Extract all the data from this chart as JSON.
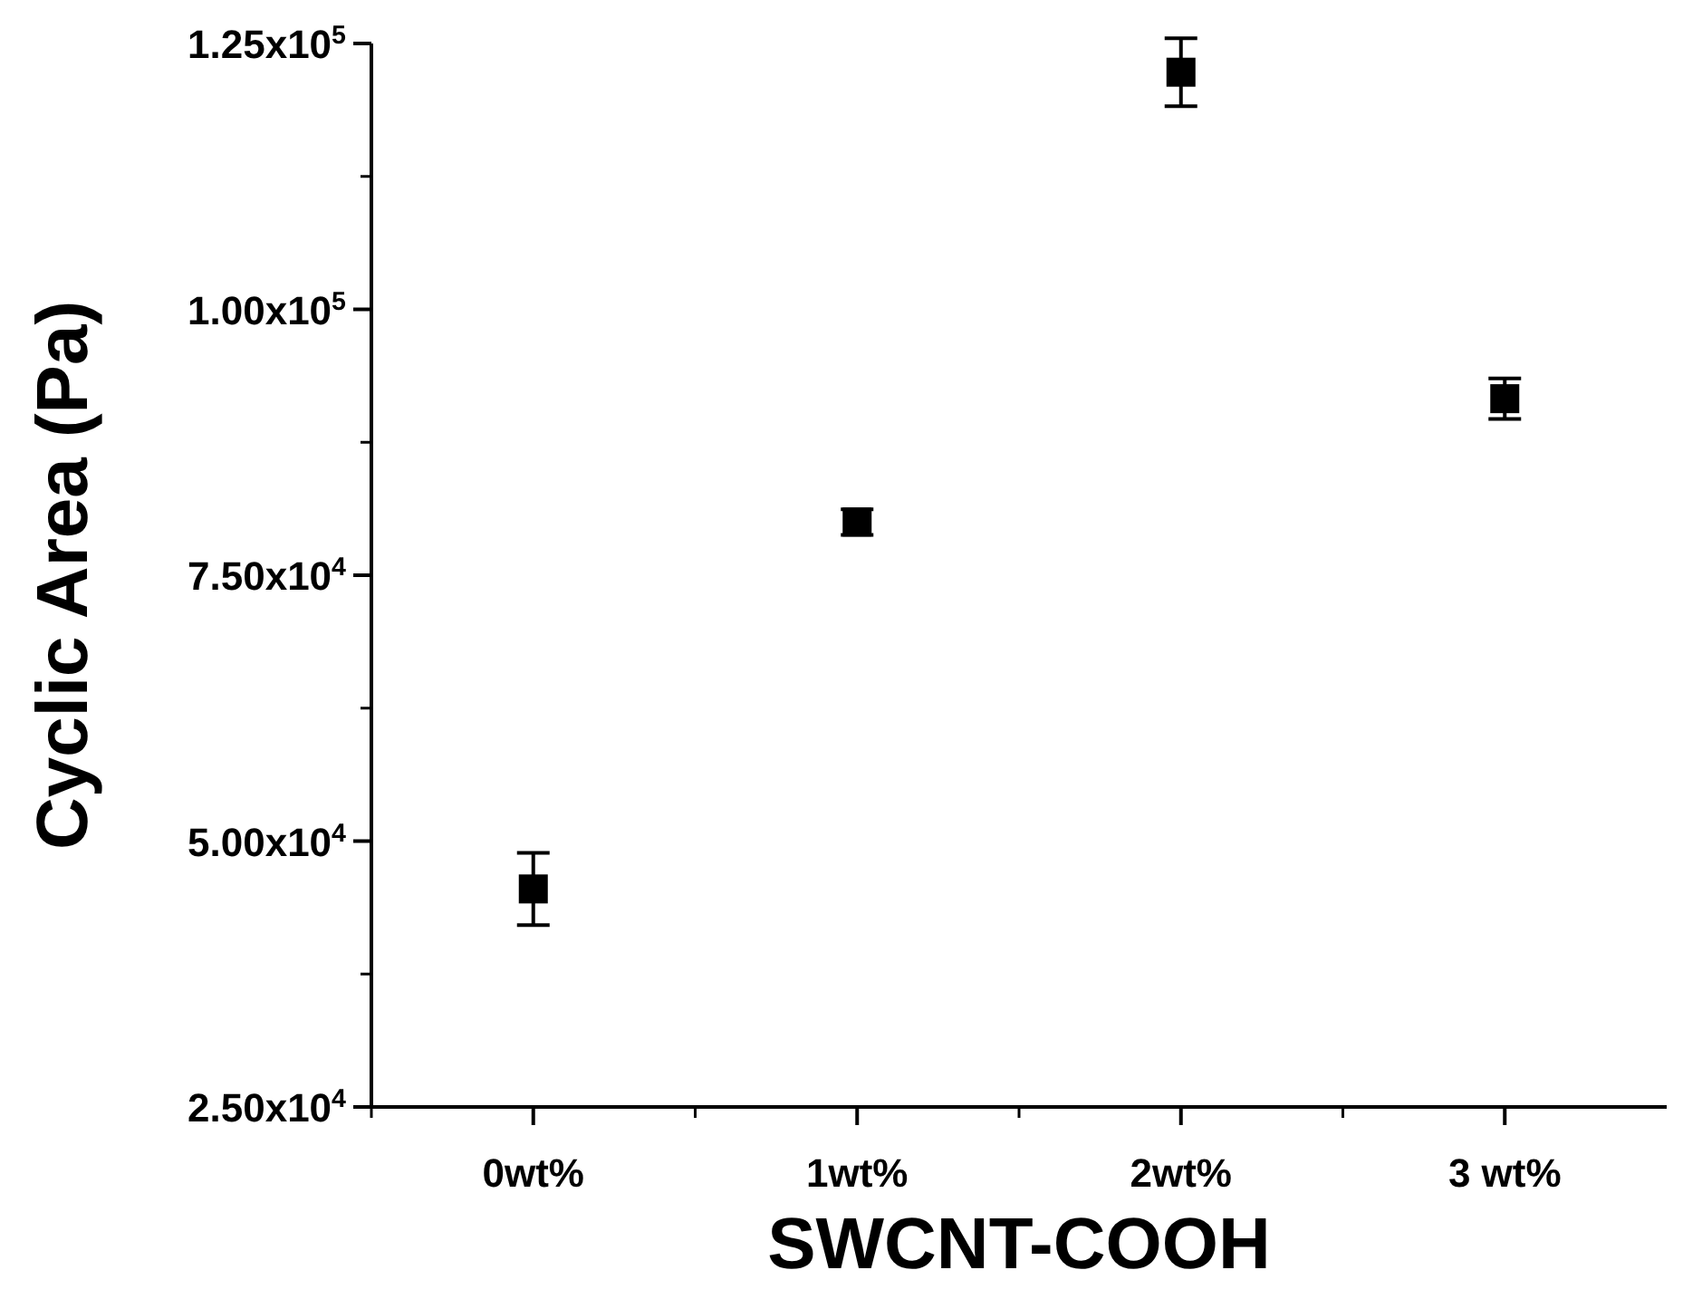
{
  "chart_data": {
    "type": "scatter",
    "xlabel": "SWCNT-COOH",
    "ylabel": "Cyclic Area (Pa)",
    "categories": [
      "0wt%",
      "1wt%",
      "2wt%",
      "3 wt%"
    ],
    "series": [
      {
        "color": "#000000",
        "values": [
          45500,
          80000,
          122300,
          91600
        ],
        "errors": [
          3400,
          1200,
          3200,
          1900
        ]
      }
    ],
    "ylim": [
      25000,
      125000
    ],
    "yticks": [
      {
        "value": 25000,
        "label": "2.50x10$^{4}$"
      },
      {
        "value": 50000,
        "label": "5.00x10$^{4}$"
      },
      {
        "value": 75000,
        "label": "7.50x10$^{4}$"
      },
      {
        "value": 100000,
        "label": "1.00x10$^{5}$"
      },
      {
        "value": 125000,
        "label": "1.25x10$^{5}$"
      }
    ],
    "marker": "square",
    "grid": false
  }
}
